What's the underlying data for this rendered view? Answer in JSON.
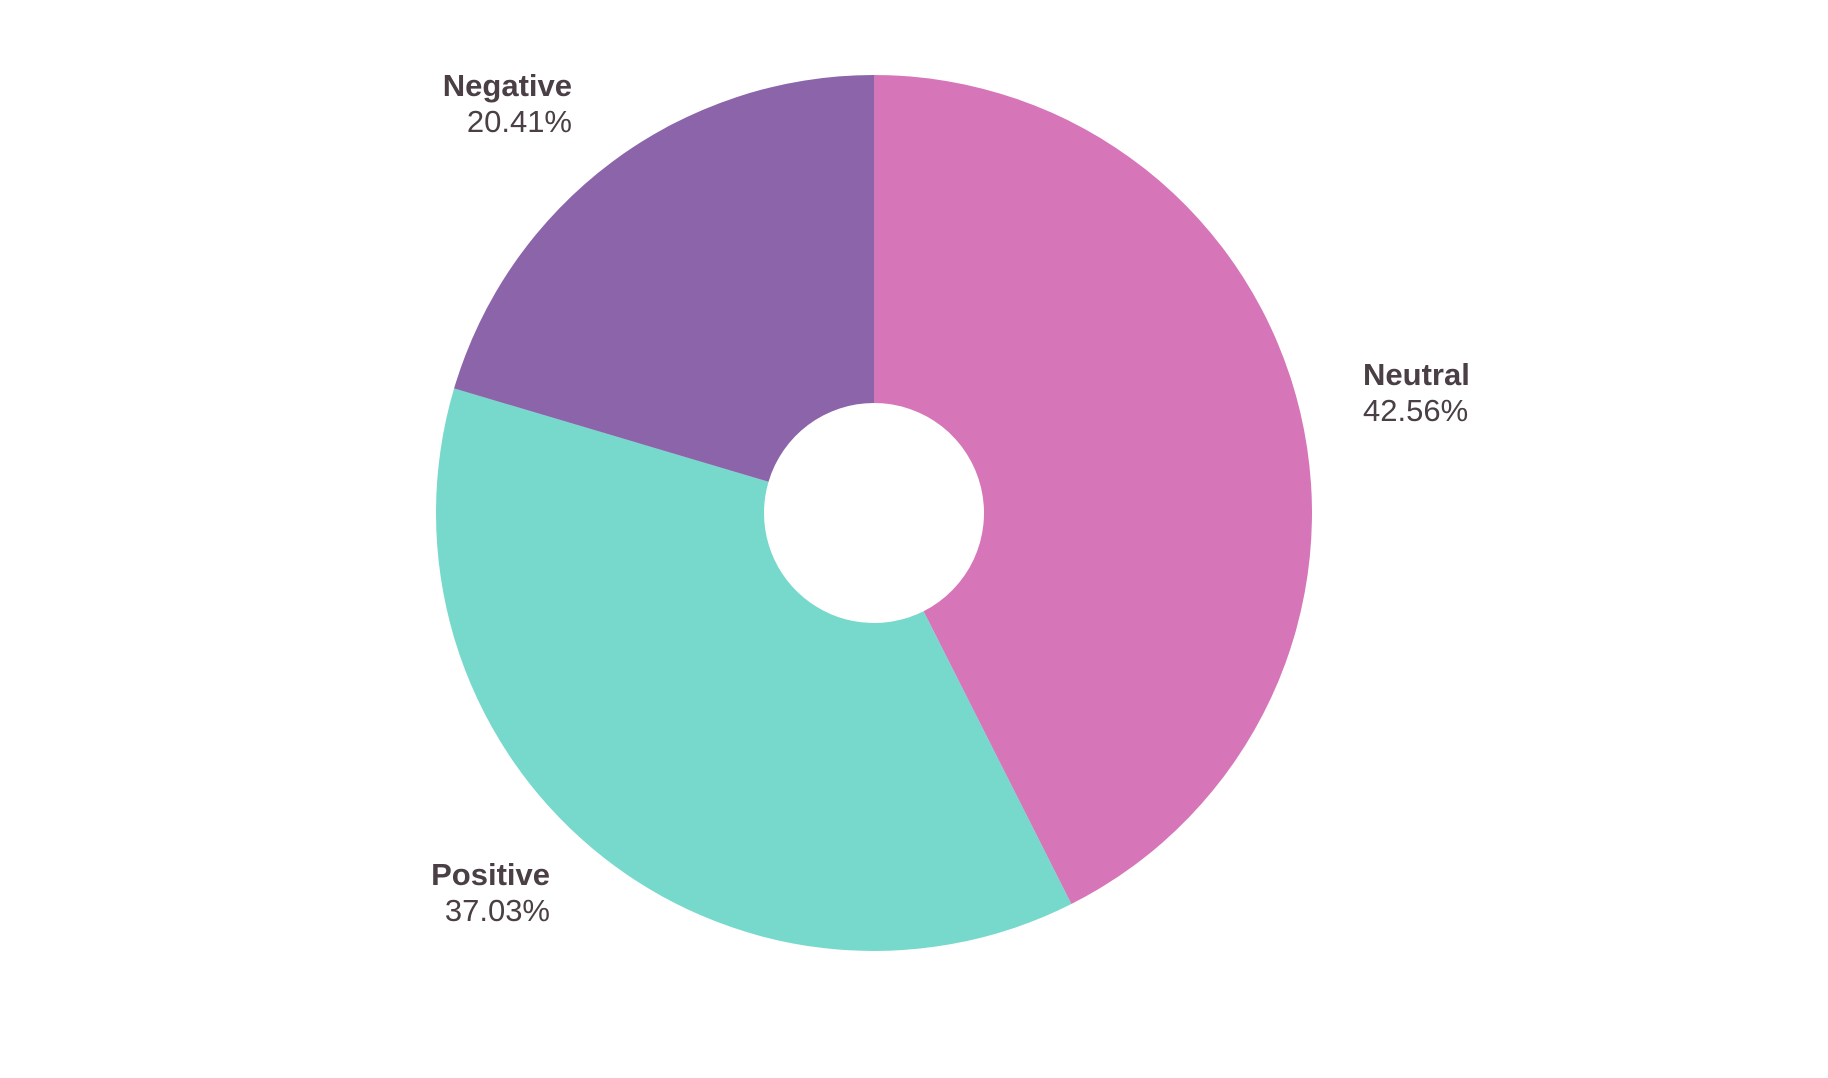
{
  "chart_data": {
    "type": "pie",
    "donut": true,
    "start": "12 o'clock",
    "direction": "clockwise",
    "slices": [
      {
        "label": "Neutral",
        "value": 42.56,
        "display": "42.56%",
        "color": "#d676b9"
      },
      {
        "label": "Positive",
        "value": 37.03,
        "display": "37.03%",
        "color": "#77d8cc"
      },
      {
        "label": "Negative",
        "value": 20.41,
        "display": "20.41%",
        "color": "#8c64aa"
      }
    ],
    "title": "",
    "legend": "none",
    "labels": "outside"
  }
}
